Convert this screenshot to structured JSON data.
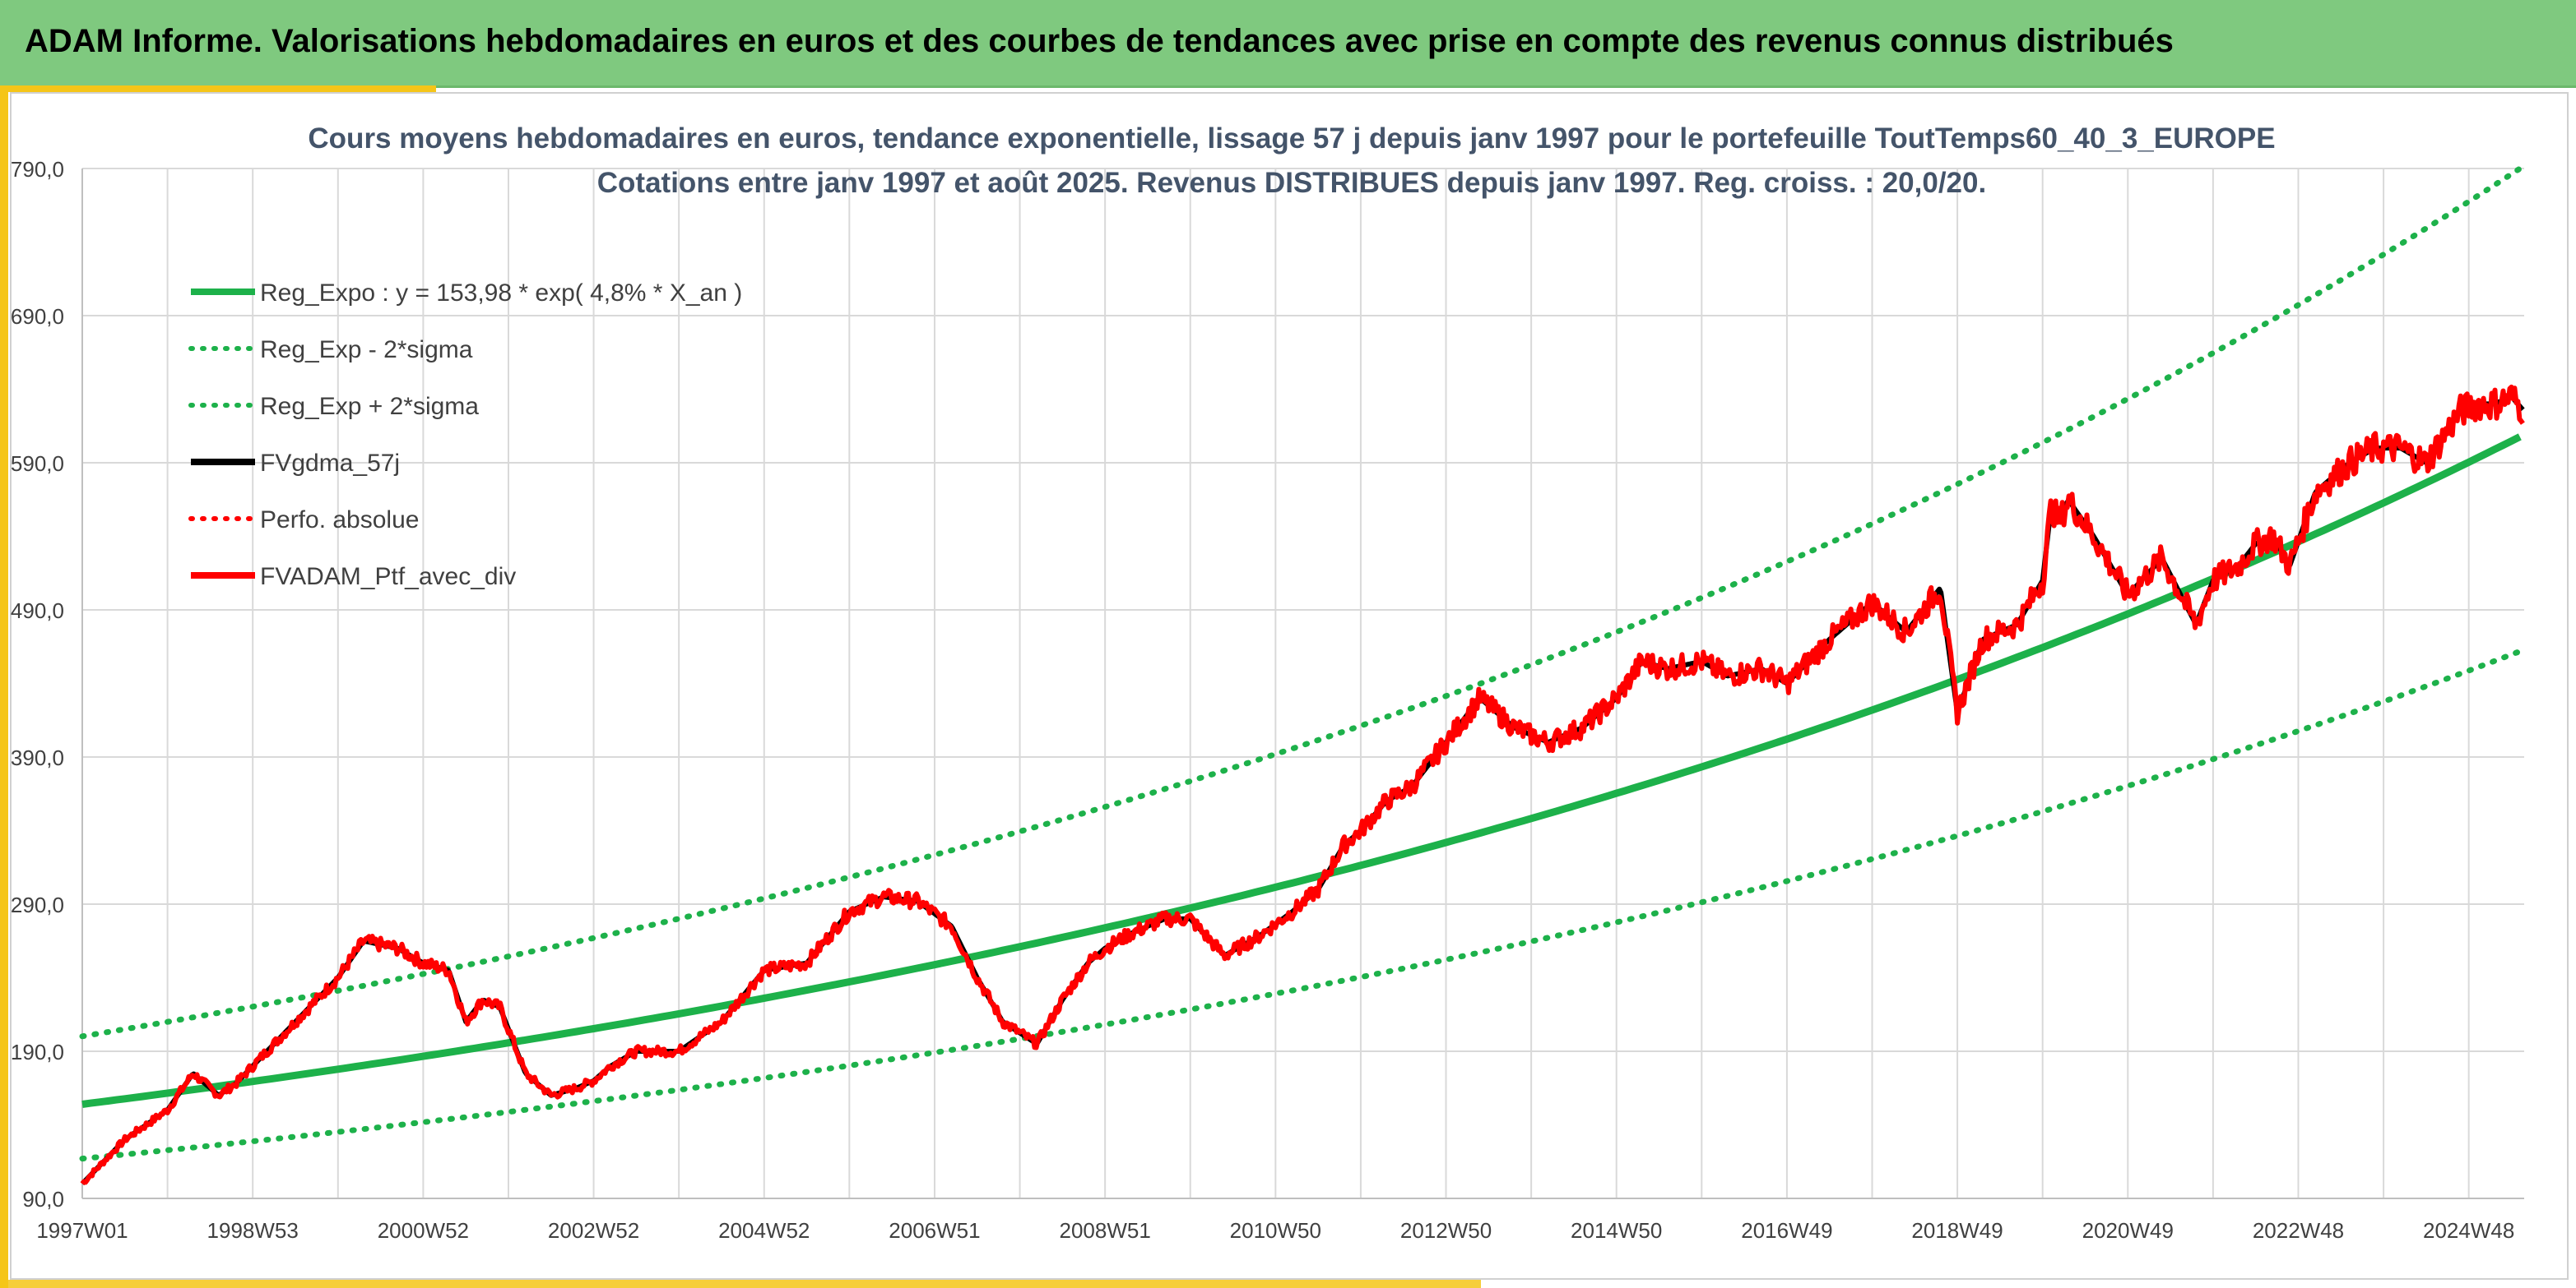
{
  "header": {
    "title": "ADAM Informe. Valorisations hebdomadaires en euros et des courbes de tendances avec prise en compte des revenus connus distribués"
  },
  "colors": {
    "header_bg": "#7fc97f",
    "accent": "#f5c518",
    "reg_green": "#1db14a",
    "gdma_black": "#000000",
    "ptf_red": "#ff0000",
    "grid": "#d9d9d9"
  },
  "chart_data": {
    "type": "line",
    "title": "Cours moyens hebdomadaires en euros, tendance exponentielle, lissage 57 j depuis janv 1997 pour le portefeuille ToutTemps60_40_3_EUROPE",
    "subtitle": "Cotations entre janv 1997 et août 2025. Revenus DISTRIBUES depuis janv 1997. Reg. croiss. : 20,0/20.",
    "x_tick_labels": [
      "1997W01",
      "1998W53",
      "2000W52",
      "2002W52",
      "2004W52",
      "2006W51",
      "2008W51",
      "2010W50",
      "2012W50",
      "2014W50",
      "2016W49",
      "2018W49",
      "2020W49",
      "2022W48",
      "2024W48"
    ],
    "x_tick_years": [
      1997,
      1999,
      2001,
      2003,
      2005,
      2007,
      2009,
      2011,
      2013,
      2015,
      2017,
      2019,
      2021,
      2023,
      2025
    ],
    "y_tick_labels": [
      "90,0",
      "190,0",
      "290,0",
      "390,0",
      "490,0",
      "590,0",
      "690,0",
      "790,0"
    ],
    "ylim": [
      90,
      790
    ],
    "xlim": [
      1997.0,
      2025.65
    ],
    "grid": true,
    "legend_position": "top-left",
    "legend": [
      {
        "label": "Reg_Expo : y = 153,98 * exp( 4,8% *  X_an )",
        "color": "#1db14a",
        "style": "solid"
      },
      {
        "label": "Reg_Exp - 2*sigma",
        "color": "#1db14a",
        "style": "dotted"
      },
      {
        "label": "Reg_Exp + 2*sigma",
        "color": "#1db14a",
        "style": "dotted"
      },
      {
        "label": "FVgdma_57j",
        "color": "#000000",
        "style": "solid"
      },
      {
        "label": "Perfo. absolue",
        "color": "#ff0000",
        "style": "dotted"
      },
      {
        "label": "FVADAM_Ptf_avec_div",
        "color": "#ff0000",
        "style": "solid"
      }
    ],
    "regression": {
      "a": 153.98,
      "rate": 0.048,
      "lower_factor": 0.76,
      "upper_factor": 1.3
    },
    "series_ptf": {
      "x": [
        1997.0,
        1997.5,
        1998.0,
        1998.3,
        1998.6,
        1998.8,
        1999.0,
        1999.5,
        2000.0,
        2000.3,
        2000.7,
        2001.0,
        2001.3,
        2001.5,
        2001.7,
        2001.9,
        2002.2,
        2002.5,
        2002.8,
        2003.0,
        2003.2,
        2003.5,
        2004.0,
        2004.5,
        2005.0,
        2005.5,
        2006.0,
        2006.4,
        2006.8,
        2007.2,
        2007.5,
        2007.8,
        2008.2,
        2008.5,
        2008.8,
        2009.0,
        2009.3,
        2009.7,
        2010.0,
        2010.4,
        2010.8,
        2011.2,
        2011.5,
        2011.8,
        2012.0,
        2012.3,
        2012.6,
        2013.0,
        2013.4,
        2013.8,
        2014.2,
        2014.6,
        2015.0,
        2015.3,
        2015.6,
        2016.0,
        2016.3,
        2016.7,
        2017.0,
        2017.5,
        2018.0,
        2018.4,
        2018.8,
        2019.0,
        2019.3,
        2019.7,
        2020.0,
        2020.1,
        2020.2,
        2020.3,
        2020.6,
        2021.0,
        2021.4,
        2021.8,
        2022.0,
        2022.3,
        2022.5,
        2022.7,
        2022.9,
        2023.2,
        2023.6,
        2023.9,
        2024.2,
        2024.5,
        2024.9,
        2025.1,
        2025.3,
        2025.5,
        2025.65
      ],
      "values": [
        100,
        130,
        150,
        175,
        160,
        168,
        180,
        210,
        240,
        265,
        260,
        250,
        245,
        210,
        225,
        220,
        175,
        160,
        165,
        170,
        180,
        190,
        190,
        210,
        245,
        250,
        285,
        295,
        292,
        275,
        240,
        210,
        195,
        225,
        250,
        260,
        270,
        280,
        280,
        255,
        268,
        285,
        300,
        330,
        340,
        360,
        370,
        400,
        430,
        410,
        400,
        410,
        430,
        455,
        450,
        455,
        445,
        450,
        440,
        470,
        495,
        475,
        505,
        420,
        470,
        480,
        510,
        560,
        550,
        565,
        540,
        500,
        525,
        480,
        510,
        520,
        535,
        540,
        520,
        570,
        590,
        600,
        600,
        590,
        625,
        630,
        630,
        635,
        625
      ]
    }
  }
}
